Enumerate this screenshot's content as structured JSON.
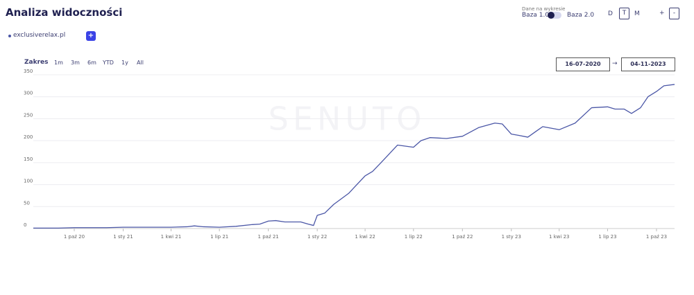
{
  "header": {
    "title": "Analiza widoczności",
    "data_label": "Dane na wykresie",
    "base1": "Baza 1.0",
    "base2": "Baza 2.0",
    "granularity": [
      "D",
      "T",
      "M"
    ],
    "zoom_in": "+",
    "zoom_out": "-",
    "add": "+",
    "range_label": "Zakres",
    "range_options": [
      "1m",
      "3m",
      "6m",
      "YTD",
      "1y",
      "All"
    ],
    "date_from": "16-07-2020",
    "date_arrow": "→",
    "date_to": "04-11-2023"
  },
  "chart_data": {
    "type": "line",
    "watermark": "SENUTO",
    "x": [
      "2020-07-16",
      "2020-09-01",
      "2020-10-01",
      "2020-12-01",
      "2021-01-01",
      "2021-03-01",
      "2021-04-01",
      "2021-05-01",
      "2021-05-15",
      "2021-06-01",
      "2021-07-01",
      "2021-08-01",
      "2021-09-01",
      "2021-09-15",
      "2021-10-01",
      "2021-10-15",
      "2021-11-01",
      "2021-12-01",
      "2021-12-15",
      "2021-12-25",
      "2022-01-01",
      "2022-01-15",
      "2022-02-01",
      "2022-03-01",
      "2022-04-01",
      "2022-04-15",
      "2022-05-01",
      "2022-06-01",
      "2022-07-01",
      "2022-07-15",
      "2022-08-01",
      "2022-09-01",
      "2022-10-01",
      "2022-11-01",
      "2022-12-01",
      "2022-12-15",
      "2023-01-01",
      "2023-01-15",
      "2023-02-01",
      "2023-02-15",
      "2023-03-01",
      "2023-04-01",
      "2023-05-01",
      "2023-06-01",
      "2023-07-01",
      "2023-07-15",
      "2023-08-01",
      "2023-08-15",
      "2023-09-01",
      "2023-09-15",
      "2023-10-01",
      "2023-10-15",
      "2023-11-04"
    ],
    "series": [
      {
        "name": "exclusiverelax.pl",
        "color": "#4a56a6",
        "values": [
          1,
          1,
          2,
          2,
          3,
          3,
          3,
          4,
          6,
          4,
          3,
          5,
          9,
          10,
          17,
          18,
          15,
          15,
          10,
          7,
          30,
          35,
          55,
          80,
          120,
          130,
          150,
          190,
          185,
          200,
          207,
          205,
          210,
          230,
          240,
          238,
          215,
          212,
          208,
          220,
          232,
          225,
          240,
          275,
          277,
          272,
          272,
          262,
          275,
          300,
          312,
          325,
          328
        ]
      }
    ],
    "xlim": [
      "2020-07-16",
      "2023-11-04"
    ],
    "xticks": [
      {
        "value": "2020-10-01",
        "label": "1 paź 20"
      },
      {
        "value": "2021-01-01",
        "label": "1 sty 21"
      },
      {
        "value": "2021-04-01",
        "label": "1 kwi 21"
      },
      {
        "value": "2021-07-01",
        "label": "1 lip 21"
      },
      {
        "value": "2021-10-01",
        "label": "1 paź 21"
      },
      {
        "value": "2022-01-01",
        "label": "1 sty 22"
      },
      {
        "value": "2022-04-01",
        "label": "1 kwi 22"
      },
      {
        "value": "2022-07-01",
        "label": "1 lip 22"
      },
      {
        "value": "2022-10-01",
        "label": "1 paź 22"
      },
      {
        "value": "2023-01-01",
        "label": "1 sty 23"
      },
      {
        "value": "2023-04-01",
        "label": "1 kwi 23"
      },
      {
        "value": "2023-07-01",
        "label": "1 lip 23"
      },
      {
        "value": "2023-10-01",
        "label": "1 paź 23"
      }
    ],
    "ylim": [
      0,
      350
    ],
    "yticks": [
      0,
      50,
      100,
      150,
      200,
      250,
      300,
      350
    ],
    "grid": true
  }
}
